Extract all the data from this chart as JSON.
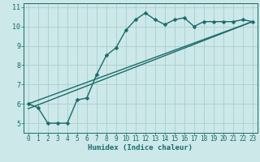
{
  "xlabel": "Humidex (Indice chaleur)",
  "background_color": "#cce8e8",
  "grid_color": "#aacece",
  "line_color": "#1a6b6b",
  "xlim": [
    -0.5,
    23.5
  ],
  "ylim": [
    4.5,
    11.2
  ],
  "xticks": [
    0,
    1,
    2,
    3,
    4,
    5,
    6,
    7,
    8,
    9,
    10,
    11,
    12,
    13,
    14,
    15,
    16,
    17,
    18,
    19,
    20,
    21,
    22,
    23
  ],
  "yticks": [
    5,
    6,
    7,
    8,
    9,
    10,
    11
  ],
  "line1_x": [
    0,
    1,
    2,
    3,
    4,
    5,
    6,
    7,
    8,
    9,
    10,
    11,
    12,
    13,
    14,
    15,
    16,
    17,
    18,
    19,
    20,
    21,
    22,
    23
  ],
  "line1_y": [
    6.0,
    5.8,
    5.0,
    5.0,
    5.0,
    6.2,
    6.3,
    7.5,
    8.5,
    8.9,
    9.8,
    10.35,
    10.7,
    10.35,
    10.1,
    10.35,
    10.45,
    10.0,
    10.25,
    10.25,
    10.25,
    10.25,
    10.35,
    10.25
  ],
  "line2_x": [
    0,
    23
  ],
  "line2_y": [
    6.0,
    10.25
  ],
  "line3_x": [
    0,
    23
  ],
  "line3_y": [
    5.75,
    10.25
  ],
  "markersize": 2.5,
  "linewidth": 1.0,
  "tick_fontsize": 5.5,
  "xlabel_fontsize": 6.5
}
